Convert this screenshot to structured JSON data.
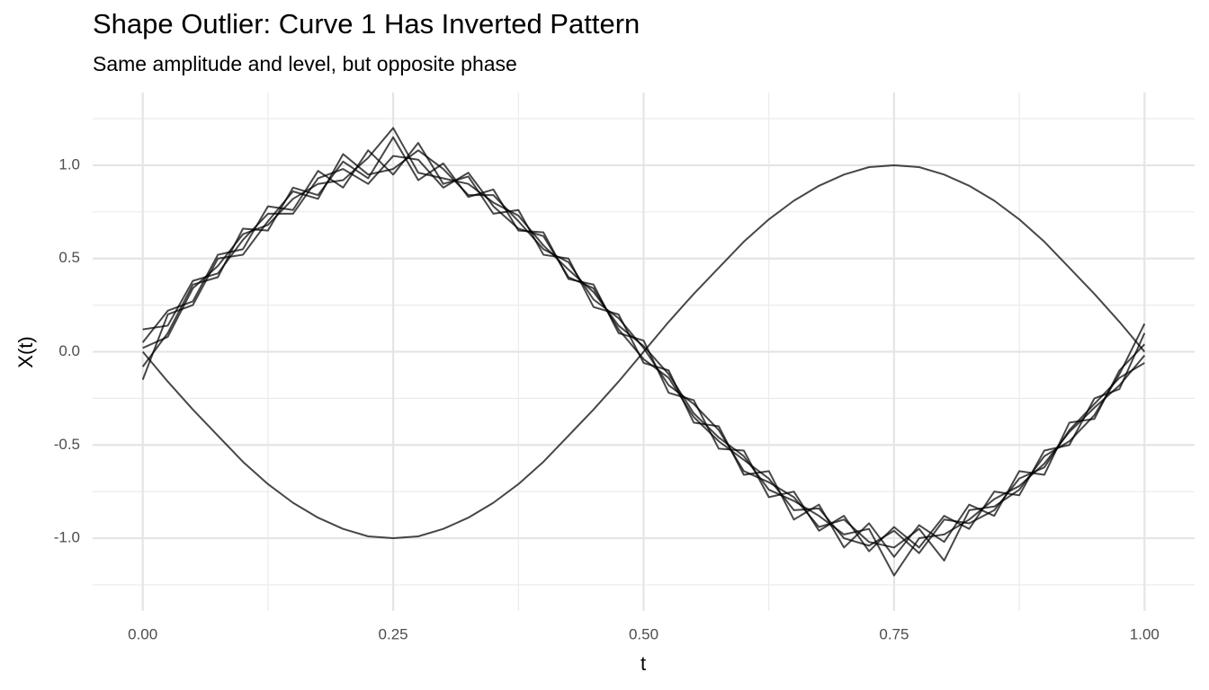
{
  "chart_data": {
    "type": "line",
    "title": "Shape Outlier: Curve 1 Has Inverted Pattern",
    "subtitle": "Same amplitude and level, but opposite phase",
    "x_label": "t",
    "y_label": "X(t)",
    "x": [
      0,
      0.025,
      0.05,
      0.075,
      0.1,
      0.125,
      0.15,
      0.175,
      0.2,
      0.225,
      0.25,
      0.275,
      0.3,
      0.325,
      0.35,
      0.375,
      0.4,
      0.425,
      0.45,
      0.475,
      0.5,
      0.525,
      0.55,
      0.575,
      0.6,
      0.625,
      0.65,
      0.675,
      0.7,
      0.725,
      0.75,
      0.775,
      0.8,
      0.825,
      0.85,
      0.875,
      0.9,
      0.925,
      0.95,
      0.975,
      1
    ],
    "series": [
      {
        "color": "rgba(0,0,0,0.72)",
        "values": [
          0,
          -0.16,
          -0.31,
          -0.45,
          -0.59,
          -0.71,
          -0.81,
          -0.89,
          -0.95,
          -0.99,
          -1,
          -0.99,
          -0.95,
          -0.89,
          -0.81,
          -0.71,
          -0.59,
          -0.45,
          -0.31,
          -0.16,
          0,
          0.16,
          0.31,
          0.45,
          0.59,
          0.71,
          0.81,
          0.89,
          0.95,
          0.99,
          1,
          0.99,
          0.95,
          0.89,
          0.81,
          0.71,
          0.59,
          0.45,
          0.31,
          0.16,
          0
        ]
      },
      {
        "color": "rgba(0,0,0,0.72)",
        "values": [
          0.05,
          0.22,
          0.27,
          0.52,
          0.55,
          0.78,
          0.76,
          0.97,
          0.88,
          1.08,
          0.95,
          1.12,
          0.9,
          0.94,
          0.74,
          0.76,
          0.52,
          0.5,
          0.24,
          0.2,
          -0.06,
          -0.1,
          -0.38,
          -0.4,
          -0.66,
          -0.64,
          -0.9,
          -0.82,
          -1.05,
          -0.92,
          -1.1,
          -0.93,
          -1.02,
          -0.82,
          -0.88,
          -0.64,
          -0.66,
          -0.38,
          -0.36,
          -0.1,
          0.04
        ]
      },
      {
        "color": "rgba(0,0,0,0.72)",
        "values": [
          -0.08,
          0.1,
          0.36,
          0.4,
          0.66,
          0.65,
          0.88,
          0.84,
          1.02,
          0.93,
          1.15,
          0.92,
          1.01,
          0.83,
          0.87,
          0.65,
          0.64,
          0.39,
          0.36,
          0.1,
          0.06,
          -0.22,
          -0.26,
          -0.52,
          -0.53,
          -0.78,
          -0.75,
          -0.96,
          -0.88,
          -1.07,
          -0.94,
          -1.05,
          -0.88,
          -0.95,
          -0.75,
          -0.77,
          -0.53,
          -0.5,
          -0.25,
          -0.2,
          0.1
        ]
      },
      {
        "color": "rgba(0,0,0,0.72)",
        "values": [
          0.12,
          0.14,
          0.38,
          0.42,
          0.6,
          0.74,
          0.74,
          0.93,
          0.98,
          0.9,
          1.05,
          1.03,
          0.88,
          0.96,
          0.78,
          0.66,
          0.62,
          0.4,
          0.34,
          0.12,
          -0.04,
          -0.14,
          -0.35,
          -0.48,
          -0.58,
          -0.68,
          -0.85,
          -0.84,
          -1,
          -1.04,
          -0.96,
          -1.08,
          -0.9,
          -0.92,
          -0.85,
          -0.68,
          -0.62,
          -0.42,
          -0.28,
          -0.14,
          -0.06
        ]
      },
      {
        "color": "rgba(0,0,0,0.72)",
        "values": [
          -0.15,
          0.2,
          0.25,
          0.5,
          0.52,
          0.7,
          0.86,
          0.82,
          1.06,
          0.95,
          0.98,
          1.08,
          0.98,
          0.84,
          0.84,
          0.7,
          0.55,
          0.48,
          0.28,
          0.18,
          0.02,
          -0.18,
          -0.28,
          -0.42,
          -0.64,
          -0.7,
          -0.78,
          -0.94,
          -0.9,
          -1.02,
          -1.05,
          -0.95,
          -1.12,
          -0.85,
          -0.83,
          -0.74,
          -0.56,
          -0.48,
          -0.34,
          -0.12,
          0.15
        ]
      },
      {
        "color": "rgba(0,0,0,0.72)",
        "values": [
          0.02,
          0.08,
          0.34,
          0.46,
          0.63,
          0.68,
          0.82,
          0.9,
          0.92,
          1.04,
          1.2,
          0.96,
          0.93,
          0.9,
          0.8,
          0.73,
          0.57,
          0.44,
          0.32,
          0.14,
          0.03,
          -0.12,
          -0.33,
          -0.46,
          -0.56,
          -0.74,
          -0.8,
          -0.88,
          -0.98,
          -0.95,
          -1.2,
          -1.0,
          -0.98,
          -0.9,
          -0.79,
          -0.72,
          -0.6,
          -0.43,
          -0.3,
          -0.18,
          -0.02
        ]
      }
    ],
    "xlim": [
      -0.05,
      1.05
    ],
    "ylim": [
      -1.39,
      1.39
    ],
    "xticks": [
      {
        "value": 0,
        "label": "0.00"
      },
      {
        "value": 0.25,
        "label": "0.25"
      },
      {
        "value": 0.5,
        "label": "0.50"
      },
      {
        "value": 0.75,
        "label": "0.75"
      },
      {
        "value": 1,
        "label": "1.00"
      }
    ],
    "yticks": [
      {
        "value": -1,
        "label": "-1.0"
      },
      {
        "value": -0.5,
        "label": "-0.5"
      },
      {
        "value": 0,
        "label": "0.0"
      },
      {
        "value": 0.5,
        "label": "0.5"
      },
      {
        "value": 1,
        "label": "1.0"
      }
    ],
    "minor_xticks": [
      0.125,
      0.375,
      0.625,
      0.875
    ],
    "minor_yticks": [
      -1.25,
      -0.75,
      -0.25,
      0.25,
      0.75,
      1.25
    ],
    "grid": true
  }
}
